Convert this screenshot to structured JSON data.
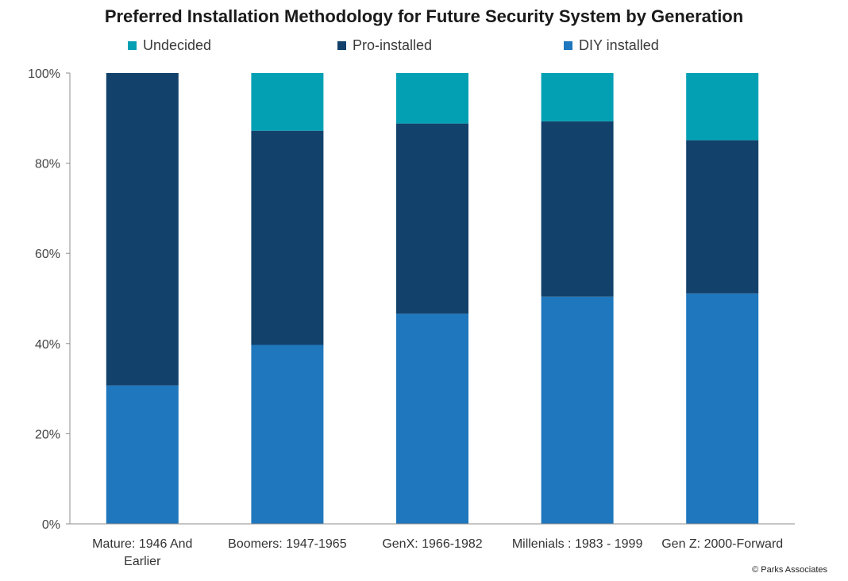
{
  "chart_data": {
    "type": "bar",
    "stacked": true,
    "title": "Preferred Installation Methodology for Future Security System by Generation",
    "categories": [
      "Mature: 1946 And Earlier",
      "Boomers: 1947-1965",
      "GenX: 1966-1982",
      "Millenials : 1983 - 1999",
      "Gen Z: 2000-Forward"
    ],
    "series": [
      {
        "name": "DIY installed",
        "color": "#1f77bd",
        "values": [
          30.7,
          39.7,
          46.6,
          50.4,
          51.1
        ]
      },
      {
        "name": "Pro-installed",
        "color": "#12426b",
        "values": [
          69.3,
          47.5,
          42.2,
          38.9,
          34.0
        ]
      },
      {
        "name": "Undecided",
        "color": "#03a0b4",
        "values": [
          0.0,
          12.8,
          11.2,
          10.7,
          14.9
        ]
      }
    ],
    "legend_order": [
      "Undecided",
      "Pro-installed",
      "DIY installed"
    ],
    "legend_position": "top",
    "y_ticks": [
      "0%",
      "20%",
      "40%",
      "60%",
      "80%",
      "100%"
    ],
    "ylim": [
      0,
      100
    ],
    "xlabel": "",
    "ylabel": "",
    "grid": false
  },
  "source_note": "© Parks Associates"
}
